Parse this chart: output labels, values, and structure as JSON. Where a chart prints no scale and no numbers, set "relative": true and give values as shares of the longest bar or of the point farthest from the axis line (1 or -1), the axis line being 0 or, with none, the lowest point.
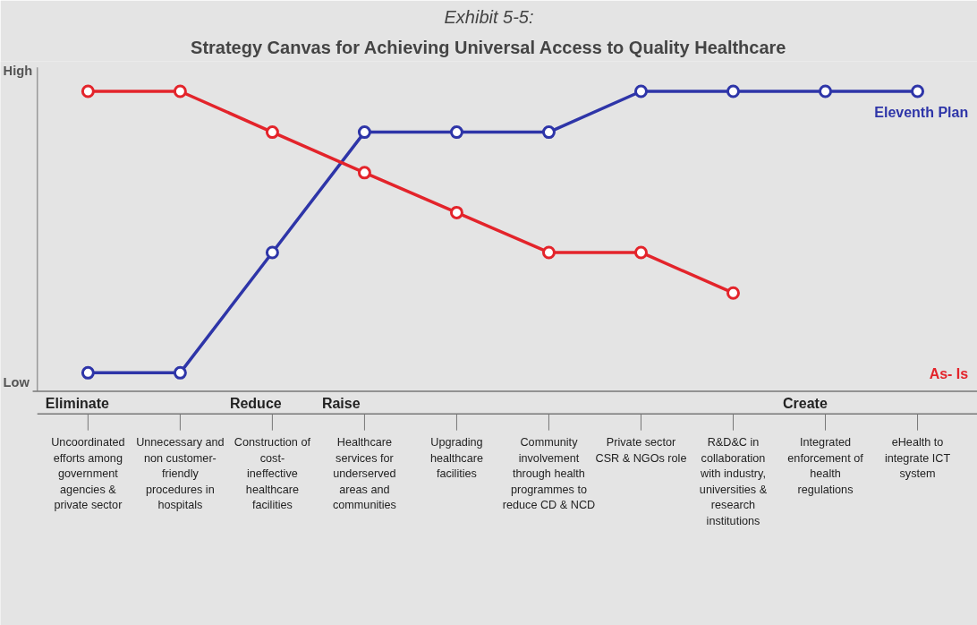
{
  "chart_data": {
    "type": "line",
    "title": "Exhibit 5-5:",
    "subtitle": "Strategy Canvas for Achieving Universal Access to Quality Healthcare",
    "relative": true,
    "marker": "circle",
    "categories": [
      "Uncoordinated efforts among government agencies & private sector",
      "Unnecessary and non customer-friendly procedures in hospitals",
      "Construction of cost-ineffective healthcare facilities",
      "Healthcare services for underserved areas and communities",
      "Upgrading healthcare facilities",
      "Community involvement through health programmes to reduce CD & NCD",
      "Private sector CSR & NGOs role",
      "R&D&C in collaboration with industry, universities & research institutions",
      "Integrated enforcement of health regulations",
      "eHealth to integrate ICT system"
    ],
    "series": [
      {
        "name": "Eleventh Plan",
        "color": "#2e35a8",
        "values": [
          0.062,
          0.062,
          0.463,
          0.864,
          0.864,
          0.864,
          1,
          1,
          1,
          1
        ]
      },
      {
        "name": "As- Is",
        "color": "#e3242b",
        "values": [
          1,
          1,
          0.864,
          0.729,
          0.596,
          0.463,
          0.463,
          0.328,
          null,
          null
        ]
      }
    ],
    "annotations": [
      "High",
      "Low",
      "Eliminate",
      "Reduce",
      "Raise",
      "Create"
    ]
  }
}
